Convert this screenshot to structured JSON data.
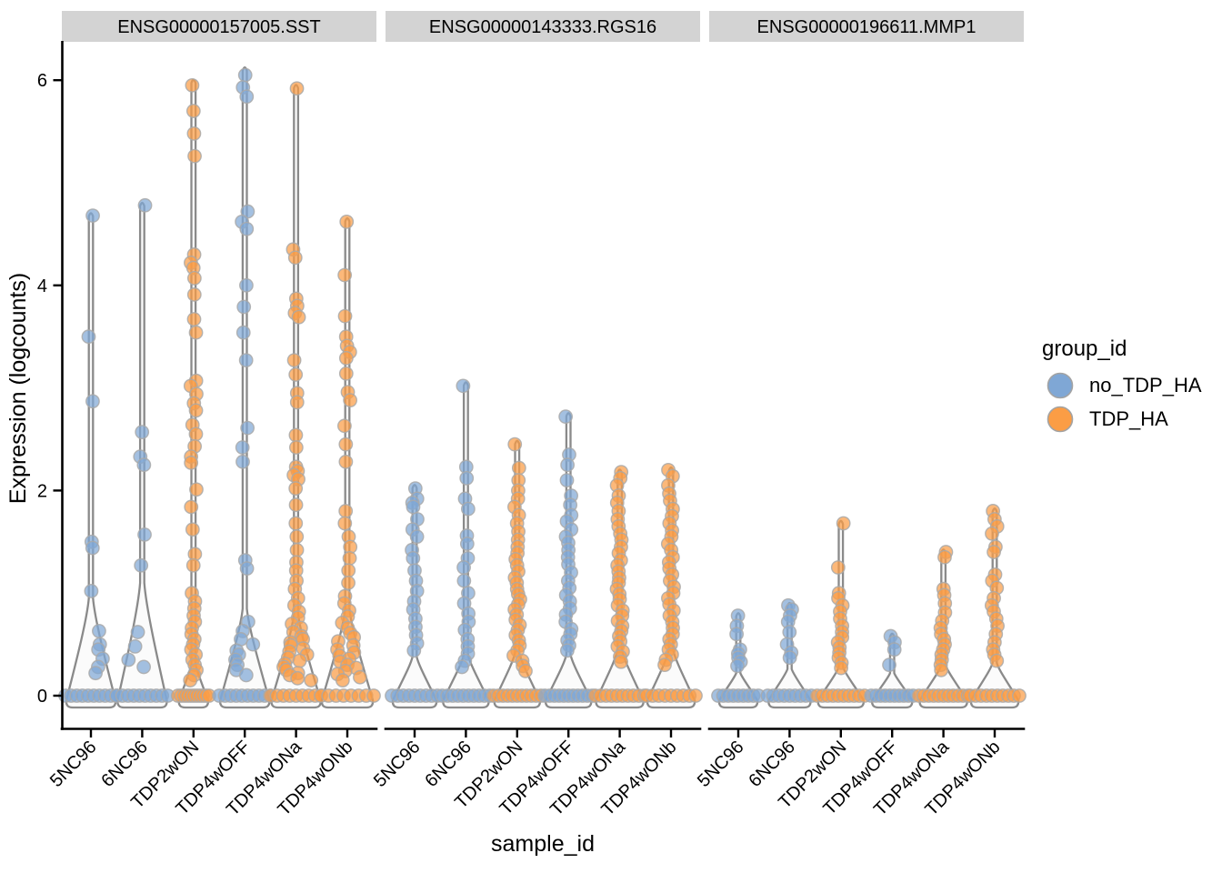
{
  "chart_data": {
    "type": "violin",
    "title": "",
    "xlabel": "sample_id",
    "ylabel": "Expression (logcounts)",
    "yticks": [
      0,
      2,
      4,
      6
    ],
    "ylim": [
      -0.4,
      6.4
    ],
    "grid": false,
    "categories": [
      "5NC96",
      "6NC96",
      "TDP2wON",
      "TDP4wOFF",
      "TDP4wONa",
      "TDP4wONb"
    ],
    "groups": {
      "no_TDP_HA": "#7FA7D5",
      "TDP_HA": "#FB9D45"
    },
    "colors": {
      "strip_bg": "#D3D3D3",
      "violin_fill": "#FBFBFB",
      "violin_stroke": "#8A8A8A",
      "axis": "#000000",
      "point_stroke": "#A9A9A9"
    },
    "legend": {
      "title": "group_id",
      "position": "right",
      "entries": [
        {
          "label": "no_TDP_HA",
          "color": "#7FA7D5"
        },
        {
          "label": "TDP_HA",
          "color": "#FB9D45"
        }
      ]
    },
    "facets": [
      {
        "label": "ENSG00000157005.SST",
        "columns": [
          {
            "sample": "5NC96",
            "group": "no_TDP_HA",
            "violin": {
              "max": 4.7,
              "bell": 0.95,
              "half_width": 27
            },
            "zeros": 10,
            "points": [
              4.68,
              3.5,
              2.87,
              1.5,
              1.44,
              1.02,
              0.63,
              0.5,
              0.45,
              0.36,
              0.28,
              0.22
            ]
          },
          {
            "sample": "6NC96",
            "group": "no_TDP_HA",
            "violin": {
              "max": 4.8,
              "bell": 1.1,
              "half_width": 27
            },
            "zeros": 10,
            "points": [
              4.78,
              2.57,
              2.33,
              2.25,
              1.57,
              1.27,
              0.62,
              0.48,
              0.35,
              0.28
            ]
          },
          {
            "sample": "TDP2wON",
            "group": "TDP_HA",
            "violin": {
              "max": 6.0,
              "bell": 0.3,
              "half_width": 16
            },
            "zeros": 11,
            "points": [
              5.95,
              5.7,
              5.48,
              5.26,
              4.3,
              4.22,
              4.17,
              4.07,
              3.91,
              3.67,
              3.54,
              3.07,
              3.02,
              2.94,
              2.85,
              2.78,
              2.64,
              2.55,
              2.43,
              2.33,
              2.27,
              2.01,
              1.84,
              1.62,
              1.38,
              1.27,
              1.0,
              0.92,
              0.85,
              0.78,
              0.72,
              0.66,
              0.6,
              0.55,
              0.5,
              0.45,
              0.4,
              0.35,
              0.3,
              0.25,
              0.2,
              0.15
            ]
          },
          {
            "sample": "TDP4wOFF",
            "group": "no_TDP_HA",
            "violin": {
              "max": 6.12,
              "bell": 0.85,
              "half_width": 27
            },
            "zeros": 10,
            "points": [
              6.05,
              5.93,
              5.84,
              4.72,
              4.62,
              4.55,
              4.0,
              3.79,
              3.54,
              3.27,
              2.61,
              2.42,
              2.28,
              1.32,
              1.24,
              0.72,
              0.63,
              0.55,
              0.5,
              0.44,
              0.4,
              0.35,
              0.3,
              0.25,
              0.2
            ]
          },
          {
            "sample": "TDP4wONa",
            "group": "TDP_HA",
            "violin": {
              "max": 5.95,
              "bell": 0.8,
              "half_width": 27
            },
            "zeros": 9,
            "points": [
              5.92,
              4.35,
              4.27,
              3.87,
              3.8,
              3.73,
              3.69,
              3.27,
              3.13,
              2.95,
              2.86,
              2.54,
              2.42,
              2.23,
              2.19,
              2.15,
              2.11,
              2.02,
              1.86,
              1.68,
              1.55,
              1.42,
              1.3,
              1.22,
              1.12,
              1.04,
              0.95,
              0.88,
              0.82,
              0.76,
              0.7,
              0.66,
              0.62,
              0.58,
              0.55,
              0.52,
              0.49,
              0.46,
              0.43,
              0.4,
              0.37,
              0.34,
              0.31,
              0.28,
              0.25,
              0.22,
              0.2,
              0.17,
              0.15
            ]
          },
          {
            "sample": "TDP4wONb",
            "group": "TDP_HA",
            "violin": {
              "max": 4.65,
              "bell": 0.85,
              "half_width": 28
            },
            "zeros": 8,
            "points": [
              4.62,
              4.1,
              3.7,
              3.5,
              3.41,
              3.35,
              3.29,
              3.14,
              2.96,
              2.88,
              2.63,
              2.45,
              2.28,
              1.8,
              1.68,
              1.55,
              1.45,
              1.34,
              1.22,
              1.1,
              0.97,
              0.9,
              0.83,
              0.77,
              0.71,
              0.66,
              0.61,
              0.57,
              0.53,
              0.49,
              0.45,
              0.42,
              0.39,
              0.36,
              0.33,
              0.3,
              0.27,
              0.24,
              0.21,
              0.18,
              0.15
            ]
          }
        ]
      },
      {
        "label": "ENSG00000143333.RGS16",
        "columns": [
          {
            "sample": "5NC96",
            "group": "no_TDP_HA",
            "violin": {
              "max": 2.05,
              "bell": 0.38,
              "half_width": 24
            },
            "zeros": 9,
            "points": [
              2.02,
              1.92,
              1.88,
              1.84,
              1.72,
              1.62,
              1.55,
              1.42,
              1.34,
              1.22,
              1.12,
              1.02,
              0.92,
              0.84,
              0.75,
              0.67,
              0.59,
              0.51,
              0.44
            ]
          },
          {
            "sample": "6NC96",
            "group": "no_TDP_HA",
            "violin": {
              "max": 3.05,
              "bell": 0.4,
              "half_width": 25
            },
            "zeros": 10,
            "points": [
              3.02,
              2.23,
              2.12,
              1.92,
              1.82,
              1.56,
              1.48,
              1.34,
              1.25,
              1.12,
              1.0,
              0.9,
              0.8,
              0.72,
              0.64,
              0.55,
              0.48,
              0.41,
              0.34,
              0.28
            ]
          },
          {
            "sample": "TDP2wON",
            "group": "TDP_HA",
            "violin": {
              "max": 2.48,
              "bell": 0.42,
              "half_width": 25
            },
            "zeros": 11,
            "points": [
              2.45,
              2.22,
              2.1,
              2.0,
              1.92,
              1.84,
              1.76,
              1.68,
              1.6,
              1.52,
              1.45,
              1.39,
              1.33,
              1.27,
              1.21,
              1.15,
              1.1,
              1.04,
              0.99,
              0.94,
              0.89,
              0.84,
              0.79,
              0.74,
              0.69,
              0.64,
              0.59,
              0.54,
              0.49,
              0.44,
              0.39,
              0.34,
              0.29,
              0.24
            ]
          },
          {
            "sample": "TDP4wOFF",
            "group": "no_TDP_HA",
            "violin": {
              "max": 2.75,
              "bell": 0.4,
              "half_width": 25
            },
            "zeros": 11,
            "points": [
              2.72,
              2.35,
              2.25,
              2.1,
              1.95,
              1.86,
              1.76,
              1.7,
              1.62,
              1.55,
              1.49,
              1.42,
              1.35,
              1.28,
              1.2,
              1.12,
              1.05,
              0.98,
              0.92,
              0.85,
              0.79,
              0.72,
              0.65,
              0.6,
              0.54,
              0.49,
              0.44
            ]
          },
          {
            "sample": "TDP4wONa",
            "group": "TDP_HA",
            "violin": {
              "max": 2.2,
              "bell": 0.45,
              "half_width": 26
            },
            "zeros": 10,
            "points": [
              2.18,
              2.12,
              2.05,
              1.95,
              1.88,
              1.8,
              1.72,
              1.65,
              1.58,
              1.52,
              1.45,
              1.39,
              1.32,
              1.27,
              1.21,
              1.15,
              1.1,
              1.04,
              0.99,
              0.94,
              0.88,
              0.83,
              0.78,
              0.73,
              0.68,
              0.63,
              0.58,
              0.53,
              0.48,
              0.43,
              0.38,
              0.33
            ]
          },
          {
            "sample": "TDP4wONb",
            "group": "TDP_HA",
            "violin": {
              "max": 2.22,
              "bell": 0.45,
              "half_width": 26
            },
            "zeros": 9,
            "points": [
              2.2,
              2.14,
              2.05,
              1.97,
              1.9,
              1.82,
              1.75,
              1.68,
              1.61,
              1.55,
              1.48,
              1.42,
              1.35,
              1.3,
              1.24,
              1.18,
              1.12,
              1.06,
              1.0,
              0.95,
              0.89,
              0.83,
              0.78,
              0.72,
              0.66,
              0.6,
              0.55,
              0.5,
              0.45,
              0.4,
              0.35,
              0.3
            ]
          }
        ]
      },
      {
        "label": "ENSG00000196611.MMP1",
        "columns": [
          {
            "sample": "5NC96",
            "group": "no_TDP_HA",
            "violin": {
              "max": 0.8,
              "bell": 0.22,
              "half_width": 21
            },
            "zeros": 9,
            "points": [
              0.78,
              0.68,
              0.6,
              0.45,
              0.41,
              0.37,
              0.33,
              0.29
            ]
          },
          {
            "sample": "6NC96",
            "group": "no_TDP_HA",
            "violin": {
              "max": 0.9,
              "bell": 0.26,
              "half_width": 23
            },
            "zeros": 9,
            "points": [
              0.88,
              0.84,
              0.78,
              0.72,
              0.62,
              0.5,
              0.42,
              0.37
            ]
          },
          {
            "sample": "TDP2wON",
            "group": "TDP_HA",
            "violin": {
              "max": 1.7,
              "bell": 0.28,
              "half_width": 25
            },
            "zeros": 10,
            "points": [
              1.68,
              1.25,
              1.0,
              0.95,
              0.88,
              0.82,
              0.75,
              0.68,
              0.62,
              0.57,
              0.52,
              0.47,
              0.42,
              0.37,
              0.32,
              0.27
            ]
          },
          {
            "sample": "TDP4wOFF",
            "group": "no_TDP_HA",
            "violin": {
              "max": 0.6,
              "bell": 0.22,
              "half_width": 22
            },
            "zeros": 10,
            "points": [
              0.58,
              0.52,
              0.45,
              0.3
            ]
          },
          {
            "sample": "TDP4wONa",
            "group": "TDP_HA",
            "violin": {
              "max": 1.42,
              "bell": 0.3,
              "half_width": 26
            },
            "zeros": 11,
            "points": [
              1.4,
              1.35,
              1.04,
              0.98,
              0.9,
              0.81,
              0.73,
              0.66,
              0.6,
              0.55,
              0.5,
              0.45,
              0.4,
              0.35,
              0.3,
              0.25
            ]
          },
          {
            "sample": "TDP4wONb",
            "group": "TDP_HA",
            "violin": {
              "max": 1.82,
              "bell": 0.32,
              "half_width": 26
            },
            "zeros": 10,
            "points": [
              1.8,
              1.72,
              1.65,
              1.58,
              1.45,
              1.4,
              1.18,
              1.12,
              1.05,
              0.95,
              0.88,
              0.82,
              0.75,
              0.68,
              0.6,
              0.52,
              0.45,
              0.4,
              0.34
            ]
          }
        ]
      }
    ]
  }
}
